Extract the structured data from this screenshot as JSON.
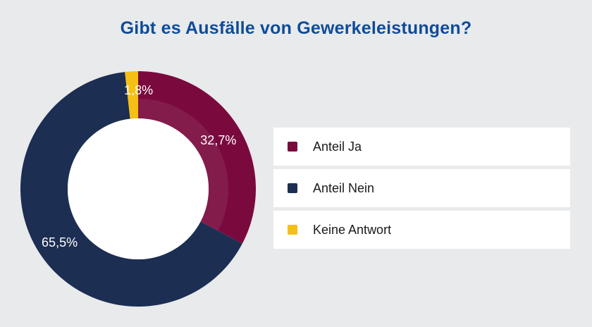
{
  "chart_data": {
    "type": "pie",
    "title": "Gibt es Ausfälle von Gewerkeleistungen?",
    "slices": [
      {
        "label": "Anteil Ja",
        "value": 32.7,
        "display": "32,7%",
        "color": "#7a0a3e"
      },
      {
        "label": "Anteil Nein",
        "value": 65.5,
        "display": "65,5%",
        "color": "#1c2e52"
      },
      {
        "label": "Keine Antwort",
        "value": 1.8,
        "display": "1,8%",
        "color": "#f6bf14"
      }
    ],
    "legend_position": "right"
  }
}
